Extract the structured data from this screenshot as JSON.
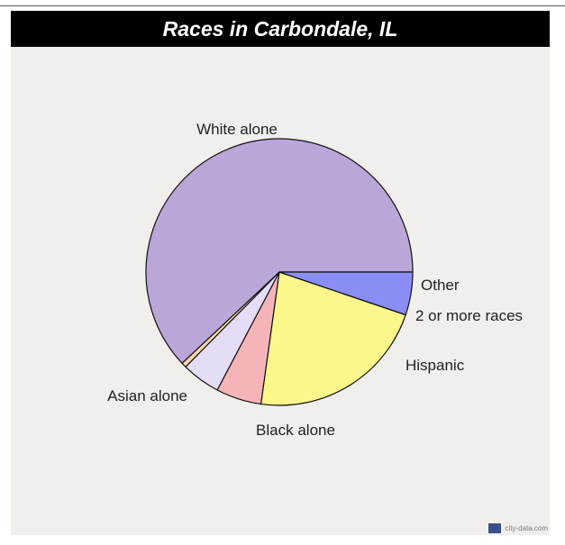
{
  "chart_data": {
    "type": "pie",
    "title": "Races in Carbondale, IL",
    "slices": [
      {
        "label": "White alone",
        "value": 62.0,
        "color": "#bba6d9"
      },
      {
        "label": "Other",
        "value": 0.6,
        "color": "#f7d9a8"
      },
      {
        "label": "2 or more races",
        "value": 4.7,
        "color": "#e5dcf6"
      },
      {
        "label": "Hispanic",
        "value": 5.5,
        "color": "#f5b5b8"
      },
      {
        "label": "Black alone",
        "value": 22.0,
        "color": "#fbf78a"
      },
      {
        "label": "Asian alone",
        "value": 5.2,
        "color": "#8a8ef4"
      }
    ]
  },
  "footer": {
    "source_text": "city-data.com"
  }
}
